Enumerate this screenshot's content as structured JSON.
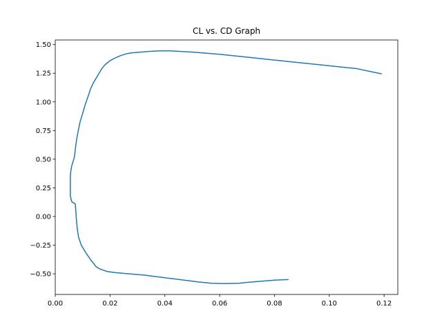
{
  "chart_data": {
    "type": "line",
    "title": "CL vs. CD Graph",
    "xlabel": "",
    "ylabel": "",
    "xlim": [
      0.0,
      0.125
    ],
    "ylim": [
      -0.68,
      1.54
    ],
    "xticks": [
      0.0,
      0.02,
      0.04,
      0.06,
      0.08,
      0.1,
      0.12
    ],
    "xtick_labels": [
      "0.00",
      "0.02",
      "0.04",
      "0.06",
      "0.08",
      "0.10",
      "0.12"
    ],
    "yticks": [
      -0.5,
      -0.25,
      0.0,
      0.25,
      0.5,
      0.75,
      1.0,
      1.25,
      1.5
    ],
    "ytick_labels": [
      "−0.50",
      "−0.25",
      "0.00",
      "0.25",
      "0.50",
      "0.75",
      "1.00",
      "1.25",
      "1.50"
    ],
    "grid": false,
    "series": [
      {
        "color": "#1f77b4",
        "x": [
          0.085,
          0.08,
          0.075,
          0.07,
          0.067,
          0.062,
          0.057,
          0.052,
          0.047,
          0.042,
          0.037,
          0.032,
          0.027,
          0.022,
          0.019,
          0.0165,
          0.015,
          0.013,
          0.011,
          0.0095,
          0.0085,
          0.008,
          0.0077,
          0.0075,
          0.0073,
          0.006,
          0.0055,
          0.0055,
          0.0055,
          0.0057,
          0.006,
          0.0065,
          0.007,
          0.0073,
          0.0075,
          0.008,
          0.0085,
          0.009,
          0.01,
          0.011,
          0.012,
          0.013,
          0.014,
          0.015,
          0.016,
          0.017,
          0.018,
          0.019,
          0.02,
          0.022,
          0.024,
          0.026,
          0.028,
          0.03,
          0.034,
          0.038,
          0.042,
          0.046,
          0.05,
          0.055,
          0.06,
          0.07,
          0.08,
          0.09,
          0.1,
          0.11,
          0.119
        ],
        "y": [
          -0.55,
          -0.555,
          -0.565,
          -0.575,
          -0.582,
          -0.585,
          -0.582,
          -0.57,
          -0.555,
          -0.54,
          -0.525,
          -0.51,
          -0.5,
          -0.49,
          -0.48,
          -0.46,
          -0.44,
          -0.38,
          -0.31,
          -0.25,
          -0.18,
          -0.1,
          -0.02,
          0.05,
          0.11,
          0.13,
          0.18,
          0.28,
          0.35,
          0.4,
          0.44,
          0.48,
          0.52,
          0.58,
          0.62,
          0.7,
          0.76,
          0.82,
          0.9,
          0.98,
          1.05,
          1.12,
          1.17,
          1.21,
          1.25,
          1.29,
          1.32,
          1.34,
          1.36,
          1.385,
          1.405,
          1.42,
          1.428,
          1.432,
          1.44,
          1.445,
          1.445,
          1.44,
          1.435,
          1.425,
          1.415,
          1.39,
          1.365,
          1.34,
          1.315,
          1.29,
          1.245
        ]
      }
    ]
  }
}
